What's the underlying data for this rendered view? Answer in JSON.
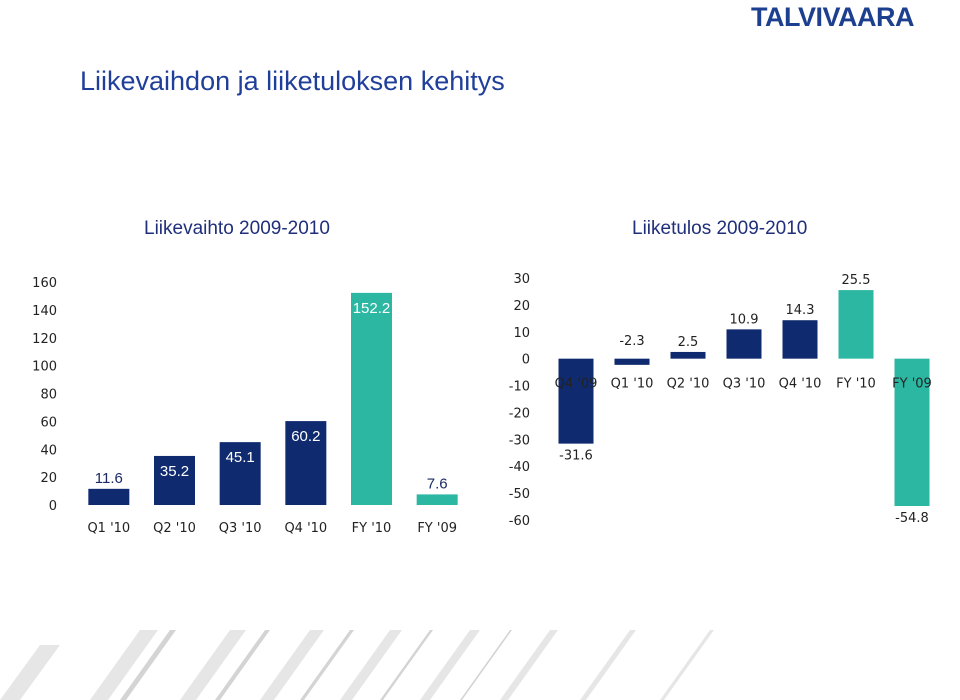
{
  "logo": "TALVIVAARA",
  "page_title": "Liikevaihdon ja liiketuloksen kehitys",
  "colors": {
    "navy": "#0f2a6e",
    "teal": "#2bb7a2",
    "title": "#1f3f9a"
  },
  "chart_data": [
    {
      "type": "bar",
      "title": "Liikevaihto 2009-2010",
      "categories": [
        "Q1 '10",
        "Q2 '10",
        "Q3 '10",
        "Q4 '10",
        "FY '10",
        "FY '09"
      ],
      "values": [
        11.6,
        35.2,
        45.1,
        60.2,
        152.2,
        7.6
      ],
      "labels": [
        "11.6",
        "35.2",
        "45.1",
        "60.2",
        "152.2",
        "7.6"
      ],
      "bar_colors": [
        "#0f2a6e",
        "#0f2a6e",
        "#0f2a6e",
        "#0f2a6e",
        "#2bb7a2",
        "#2bb7a2"
      ],
      "ylim": [
        0,
        160
      ],
      "yticks": [
        "0",
        "20",
        "40",
        "60",
        "80",
        "100",
        "120",
        "140",
        "160"
      ],
      "grid": false
    },
    {
      "type": "bar",
      "title": "Liiketulos 2009-2010",
      "categories": [
        "Q4 '09",
        "Q1 '10",
        "Q2 '10",
        "Q3 '10",
        "Q4 '10",
        "FY '10",
        "FY '09"
      ],
      "values": [
        -31.6,
        -2.3,
        2.5,
        10.9,
        14.3,
        25.5,
        -54.8
      ],
      "labels": [
        "-31.6",
        "-2.3",
        "2.5",
        "10.9",
        "14.3",
        "25.5",
        "-54.8"
      ],
      "bar_colors": [
        "#0f2a6e",
        "#0f2a6e",
        "#0f2a6e",
        "#0f2a6e",
        "#0f2a6e",
        "#2bb7a2",
        "#2bb7a2"
      ],
      "ylim": [
        -60,
        30
      ],
      "yticks": [
        "30",
        "20",
        "10",
        "0",
        "-10",
        "-20",
        "-30",
        "-40",
        "-50",
        "-60"
      ],
      "grid": false
    }
  ]
}
